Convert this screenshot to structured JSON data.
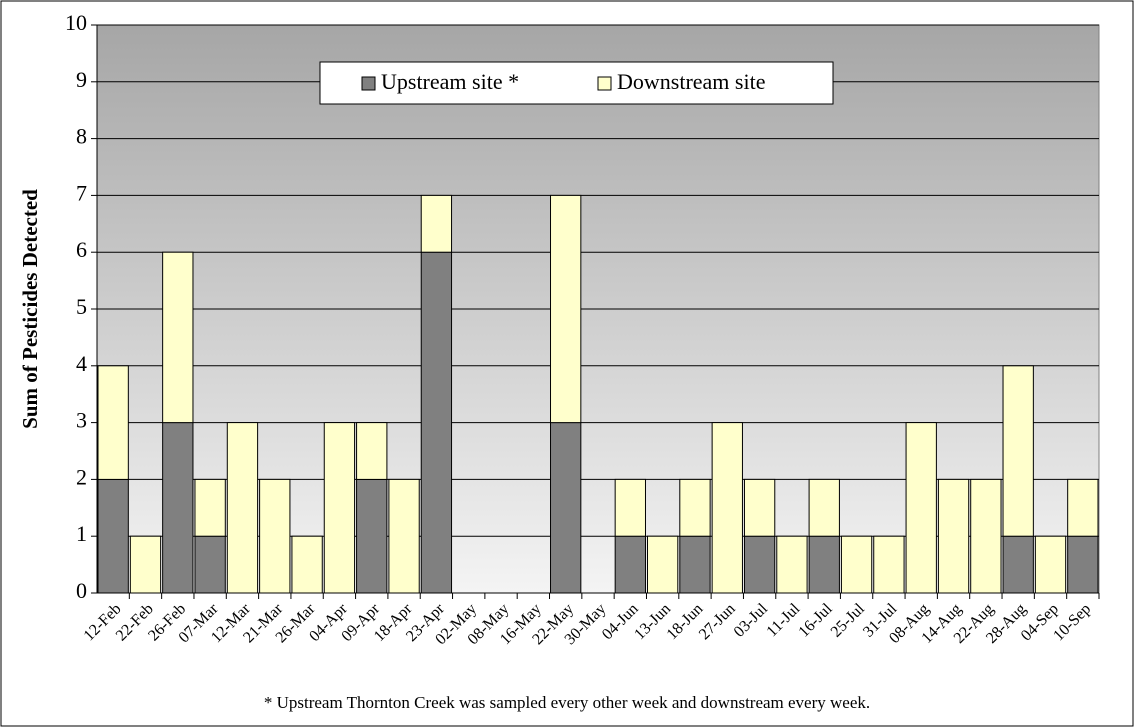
{
  "chart_data": {
    "type": "bar",
    "stacked": true,
    "y_label": "Sum of Pesticides Detected",
    "footnote": "* Upstream Thornton Creek was sampled every other week and downstream every week.",
    "categories": [
      "12-Feb",
      "22-Feb",
      "26-Feb",
      "07-Mar",
      "12-Mar",
      "21-Mar",
      "26-Mar",
      "04-Apr",
      "09-Apr",
      "18-Apr",
      "23-Apr",
      "02-May",
      "08-May",
      "16-May",
      "22-May",
      "30-May",
      "04-Jun",
      "13-Jun",
      "18-Jun",
      "27-Jun",
      "03-Jul",
      "11-Jul",
      "16-Jul",
      "25-Jul",
      "31-Jul",
      "08-Aug",
      "14-Aug",
      "22-Aug",
      "28-Aug",
      "04-Sep",
      "10-Sep"
    ],
    "series": [
      {
        "name": "Upstream site *",
        "color": "#808080",
        "values": [
          2,
          0,
          3,
          1,
          0,
          0,
          0,
          0,
          2,
          0,
          6,
          0,
          0,
          0,
          3,
          0,
          1,
          0,
          1,
          0,
          1,
          0,
          1,
          0,
          0,
          0,
          0,
          0,
          1,
          0,
          1
        ]
      },
      {
        "name": "Downstream site",
        "color": "#ffffcc",
        "values": [
          2,
          1,
          3,
          1,
          3,
          2,
          1,
          3,
          1,
          2,
          1,
          0,
          0,
          0,
          4,
          0,
          1,
          1,
          1,
          3,
          1,
          1,
          1,
          1,
          1,
          3,
          2,
          2,
          3,
          1,
          1
        ]
      }
    ],
    "ylim": [
      0,
      10
    ],
    "yticks": [
      0,
      1,
      2,
      3,
      4,
      5,
      6,
      7,
      8,
      9,
      10
    ],
    "grid": true,
    "legend": "top"
  }
}
